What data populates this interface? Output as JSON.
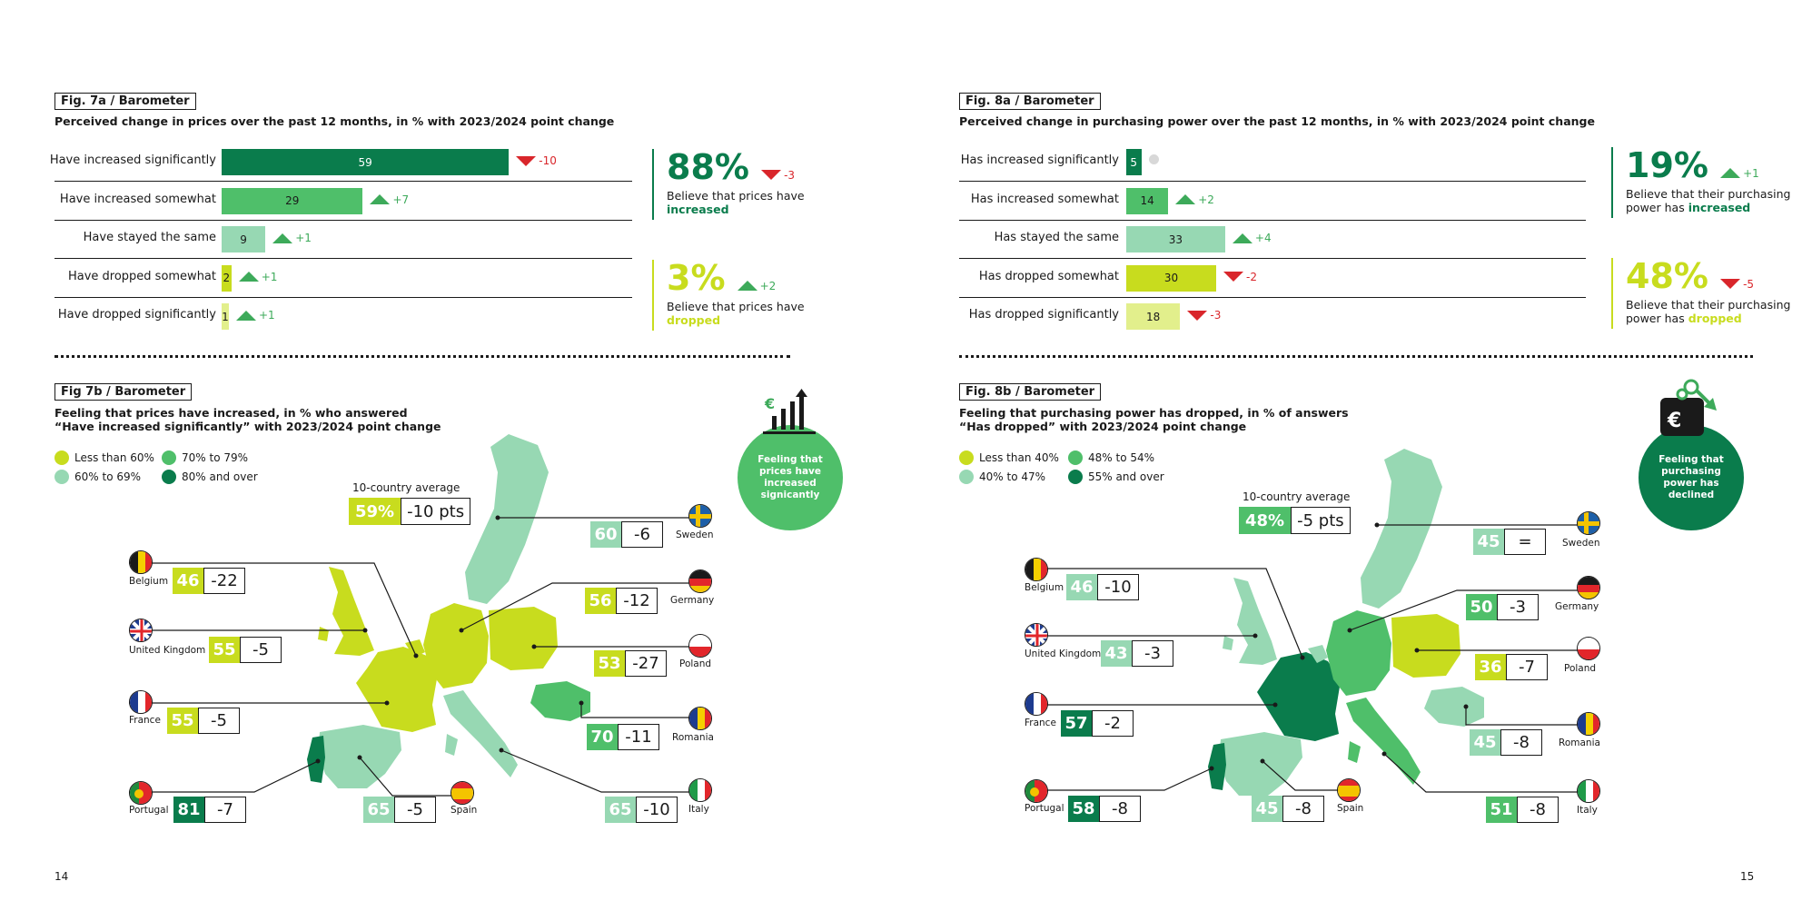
{
  "colors": {
    "dark_green": "#0a7c4c",
    "mid_green": "#4fbf6a",
    "light_green": "#97d8b3",
    "lime": "#c8dc1e",
    "pale_lime": "#e2ef8c",
    "up": "#3daa5a",
    "down": "#d9262b"
  },
  "left": {
    "fig_a_tag": "Fig. 7a / Barometer",
    "fig_a_subtitle": "Perceived change in prices over the past 12 months, in % with 2023/2024 point change",
    "fig_b_tag": "Fig 7b / Barometer",
    "fig_b_subtitle_1": "Feeling that prices have increased, in % who answered",
    "fig_b_subtitle_2": "“Have increased significantly” with 2023/2024 point change",
    "summary_up": {
      "pct": "88%",
      "delta": "-3",
      "text": "Believe that prices have",
      "emph": "increased"
    },
    "summary_down": {
      "pct": "3%",
      "delta": "+2",
      "text": "Believe that prices have",
      "emph": "dropped"
    },
    "legend": [
      "Less than 60%",
      "70% to 79%",
      "60% to 69%",
      "80% and over"
    ],
    "avg_label": "10-country average",
    "avg_value": "59%",
    "avg_delta": "-10 pts",
    "badge": "Feeling that prices have increased signicantly",
    "page": "14"
  },
  "right": {
    "fig_a_tag": "Fig. 8a / Barometer",
    "fig_a_subtitle": "Perceived change in purchasing power over the past 12 months, in % with 2023/2024 point change",
    "fig_b_tag": "Fig. 8b / Barometer",
    "fig_b_subtitle_1": "Feeling that purchasing power has dropped, in % of answers",
    "fig_b_subtitle_2": "“Has dropped” with 2023/2024 point change",
    "summary_up": {
      "pct": "19%",
      "delta": "+1",
      "text": "Believe that their purchasing",
      "text2": "power has",
      "emph": "increased"
    },
    "summary_down": {
      "pct": "48%",
      "delta": "-5",
      "text": "Believe that their purchasing",
      "text2": "power has",
      "emph": "dropped"
    },
    "legend": [
      "Less than 40%",
      "48% to 54%",
      "40% to 47%",
      "55% and over"
    ],
    "avg_label": "10-country average",
    "avg_value": "48%",
    "avg_delta": "-5 pts",
    "badge": "Feeling that purchasing power has declined",
    "page": "15"
  },
  "chart_data": [
    {
      "type": "bar",
      "title": "Perceived change in prices over the past 12 months, in % with 2023/2024 point change",
      "categories": [
        "Have increased significantly",
        "Have increased somewhat",
        "Have stayed the same",
        "Have dropped somewhat",
        "Have dropped significantly"
      ],
      "values": [
        59,
        29,
        9,
        2,
        1
      ],
      "point_change": [
        "-10",
        "+7",
        "+1",
        "+1",
        "+1"
      ],
      "change_direction": [
        "down",
        "up",
        "up",
        "up",
        "up"
      ],
      "bar_colors": [
        "#0a7c4c",
        "#4fbf6a",
        "#97d8b3",
        "#c8dc1e",
        "#e2ef8c"
      ],
      "xlim": [
        0,
        100
      ]
    },
    {
      "type": "bar",
      "title": "Perceived change in purchasing power over the past 12 months, in % with 2023/2024 point change",
      "categories": [
        "Has increased significantly",
        "Has increased somewhat",
        "Has stayed the same",
        "Has dropped somewhat",
        "Has dropped significantly"
      ],
      "values": [
        5,
        14,
        33,
        30,
        18
      ],
      "point_change": [
        "",
        "+2",
        "+4",
        "-2",
        "-3"
      ],
      "change_direction": [
        "neutral",
        "up",
        "up",
        "down",
        "down"
      ],
      "bar_colors": [
        "#0a7c4c",
        "#4fbf6a",
        "#97d8b3",
        "#c8dc1e",
        "#e2ef8c"
      ],
      "xlim": [
        0,
        100
      ]
    },
    {
      "type": "map",
      "title": "Feeling that prices have increased, in % who answered “Have increased significantly” with 2023/2024 point change",
      "countries": [
        {
          "name": "Belgium",
          "value": 46,
          "change": "-22",
          "band": "lime"
        },
        {
          "name": "United Kingdom",
          "value": 55,
          "change": "-5",
          "band": "lime"
        },
        {
          "name": "France",
          "value": 55,
          "change": "-5",
          "band": "lime"
        },
        {
          "name": "Portugal",
          "value": 81,
          "change": "-7",
          "band": "dark_green"
        },
        {
          "name": "Spain",
          "value": 65,
          "change": "-5",
          "band": "light_green"
        },
        {
          "name": "Sweden",
          "value": 60,
          "change": "-6",
          "band": "light_green"
        },
        {
          "name": "Germany",
          "value": 56,
          "change": "-12",
          "band": "lime"
        },
        {
          "name": "Poland",
          "value": 53,
          "change": "-27",
          "band": "lime"
        },
        {
          "name": "Romania",
          "value": 70,
          "change": "-11",
          "band": "mid_green"
        },
        {
          "name": "Italy",
          "value": 65,
          "change": "-10",
          "band": "light_green"
        }
      ]
    },
    {
      "type": "map",
      "title": "Feeling that purchasing power has dropped, in % of answers “Has dropped” with 2023/2024 point change",
      "countries": [
        {
          "name": "Belgium",
          "value": 46,
          "change": "-10",
          "band": "light_green"
        },
        {
          "name": "United Kingdom",
          "value": 43,
          "change": "-3",
          "band": "light_green"
        },
        {
          "name": "France",
          "value": 57,
          "change": "-2",
          "band": "dark_green"
        },
        {
          "name": "Portugal",
          "value": 58,
          "change": "-8",
          "band": "dark_green"
        },
        {
          "name": "Spain",
          "value": 45,
          "change": "-8",
          "band": "light_green"
        },
        {
          "name": "Sweden",
          "value": 45,
          "change": "=",
          "band": "light_green"
        },
        {
          "name": "Germany",
          "value": 50,
          "change": "-3",
          "band": "mid_green"
        },
        {
          "name": "Poland",
          "value": 36,
          "change": "-7",
          "band": "lime"
        },
        {
          "name": "Romania",
          "value": 45,
          "change": "-8",
          "band": "light_green"
        },
        {
          "name": "Italy",
          "value": 51,
          "change": "-8",
          "band": "mid_green"
        }
      ]
    }
  ]
}
